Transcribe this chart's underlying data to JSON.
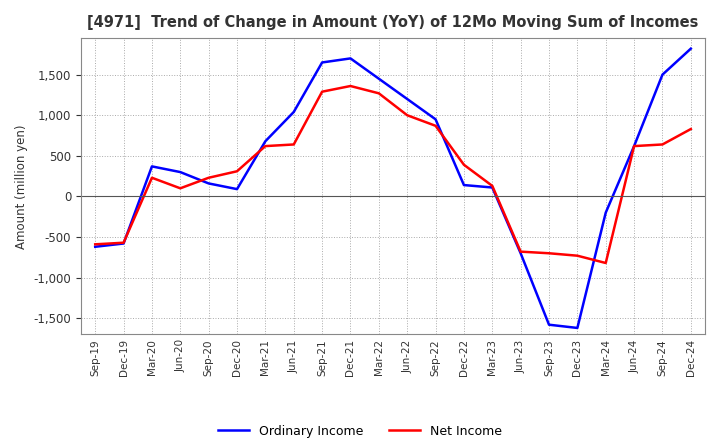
{
  "title": "[4971]  Trend of Change in Amount (YoY) of 12Mo Moving Sum of Incomes",
  "ylabel": "Amount (million yen)",
  "ylim": [
    -1700,
    1950
  ],
  "yticks": [
    -1500,
    -1000,
    -500,
    0,
    500,
    1000,
    1500
  ],
  "background_color": "#ffffff",
  "grid_color": "#aaaaaa",
  "ordinary_income_color": "#0000ff",
  "net_income_color": "#ff0000",
  "x_labels": [
    "Sep-19",
    "Dec-19",
    "Mar-20",
    "Jun-20",
    "Sep-20",
    "Dec-20",
    "Mar-21",
    "Jun-21",
    "Sep-21",
    "Dec-21",
    "Mar-22",
    "Jun-22",
    "Sep-22",
    "Dec-22",
    "Mar-23",
    "Jun-23",
    "Sep-23",
    "Dec-23",
    "Mar-24",
    "Jun-24",
    "Sep-24",
    "Dec-24"
  ],
  "ordinary_income": [
    -620,
    -580,
    370,
    300,
    160,
    90,
    680,
    1040,
    1650,
    1700,
    1450,
    1200,
    950,
    140,
    110,
    -700,
    -1580,
    -1620,
    -200,
    620,
    1500,
    1820
  ],
  "net_income": [
    -590,
    -570,
    230,
    100,
    230,
    310,
    620,
    640,
    1290,
    1360,
    1270,
    1000,
    870,
    390,
    130,
    -680,
    -700,
    -730,
    -820,
    620,
    640,
    830
  ]
}
